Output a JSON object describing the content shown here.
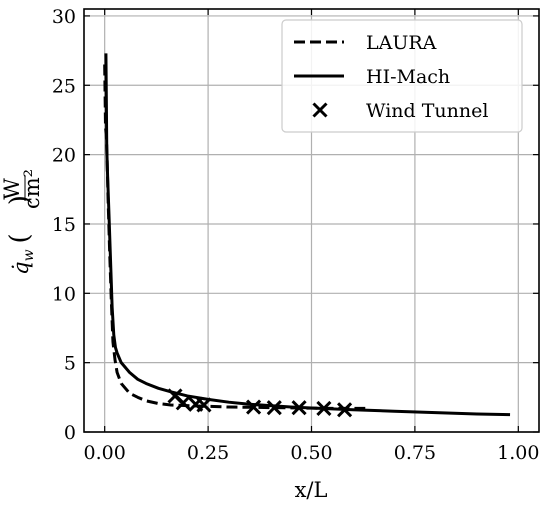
{
  "chart_data": {
    "type": "line",
    "xlabel": "x/L",
    "ylabel": {
      "symbol": "q̇",
      "subscript": "w",
      "unit_numerator": "W",
      "unit_denominator": "cm²"
    },
    "xlim": [
      -0.05,
      1.05
    ],
    "ylim": [
      0,
      30.5
    ],
    "x_ticks": [
      0.0,
      0.25,
      0.5,
      0.75,
      1.0
    ],
    "x_tick_labels": [
      "0.00",
      "0.25",
      "0.50",
      "0.75",
      "1.00"
    ],
    "y_ticks": [
      0,
      5,
      10,
      15,
      20,
      25,
      30
    ],
    "y_tick_labels": [
      "0",
      "5",
      "10",
      "15",
      "20",
      "25",
      "30"
    ],
    "grid": true,
    "legend": {
      "placement": "top-right",
      "entries": [
        "LAURA",
        "HI-Mach",
        "Wind Tunnel"
      ]
    },
    "series": [
      {
        "name": "LAURA",
        "style": "dashed",
        "color": "#000000",
        "x": [
          0.0,
          0.002,
          0.004,
          0.006,
          0.008,
          0.012,
          0.016,
          0.02,
          0.025,
          0.03,
          0.04,
          0.06,
          0.08,
          0.1,
          0.13,
          0.16,
          0.2,
          0.25,
          0.3,
          0.35,
          0.4,
          0.45,
          0.5,
          0.55,
          0.6,
          0.63
        ],
        "y": [
          26.5,
          22.0,
          21.5,
          19.5,
          17.0,
          13.0,
          9.5,
          6.5,
          5.2,
          4.3,
          3.5,
          2.8,
          2.5,
          2.25,
          2.05,
          1.95,
          1.9,
          1.85,
          1.8,
          1.78,
          1.76,
          1.74,
          1.72,
          1.7,
          1.7,
          1.7
        ]
      },
      {
        "name": "HI-Mach",
        "style": "solid",
        "color": "#000000",
        "x": [
          0.003,
          0.005,
          0.007,
          0.01,
          0.014,
          0.018,
          0.022,
          0.026,
          0.03,
          0.04,
          0.06,
          0.08,
          0.1,
          0.13,
          0.16,
          0.2,
          0.25,
          0.3,
          0.35,
          0.4,
          0.45,
          0.5,
          0.6,
          0.7,
          0.8,
          0.9,
          0.98
        ],
        "y": [
          27.3,
          20.5,
          18.5,
          16.0,
          12.5,
          9.0,
          7.0,
          6.1,
          5.7,
          5.0,
          4.3,
          3.8,
          3.5,
          3.15,
          2.9,
          2.6,
          2.35,
          2.15,
          2.0,
          1.9,
          1.8,
          1.73,
          1.6,
          1.5,
          1.4,
          1.3,
          1.25
        ]
      },
      {
        "name": "Wind Tunnel",
        "style": "markers",
        "marker": "x",
        "color": "#000000",
        "x": [
          0.17,
          0.19,
          0.22,
          0.24,
          0.36,
          0.41,
          0.47,
          0.53,
          0.58
        ],
        "y": [
          2.6,
          2.1,
          2.0,
          1.95,
          1.8,
          1.75,
          1.75,
          1.7,
          1.6
        ]
      }
    ]
  }
}
